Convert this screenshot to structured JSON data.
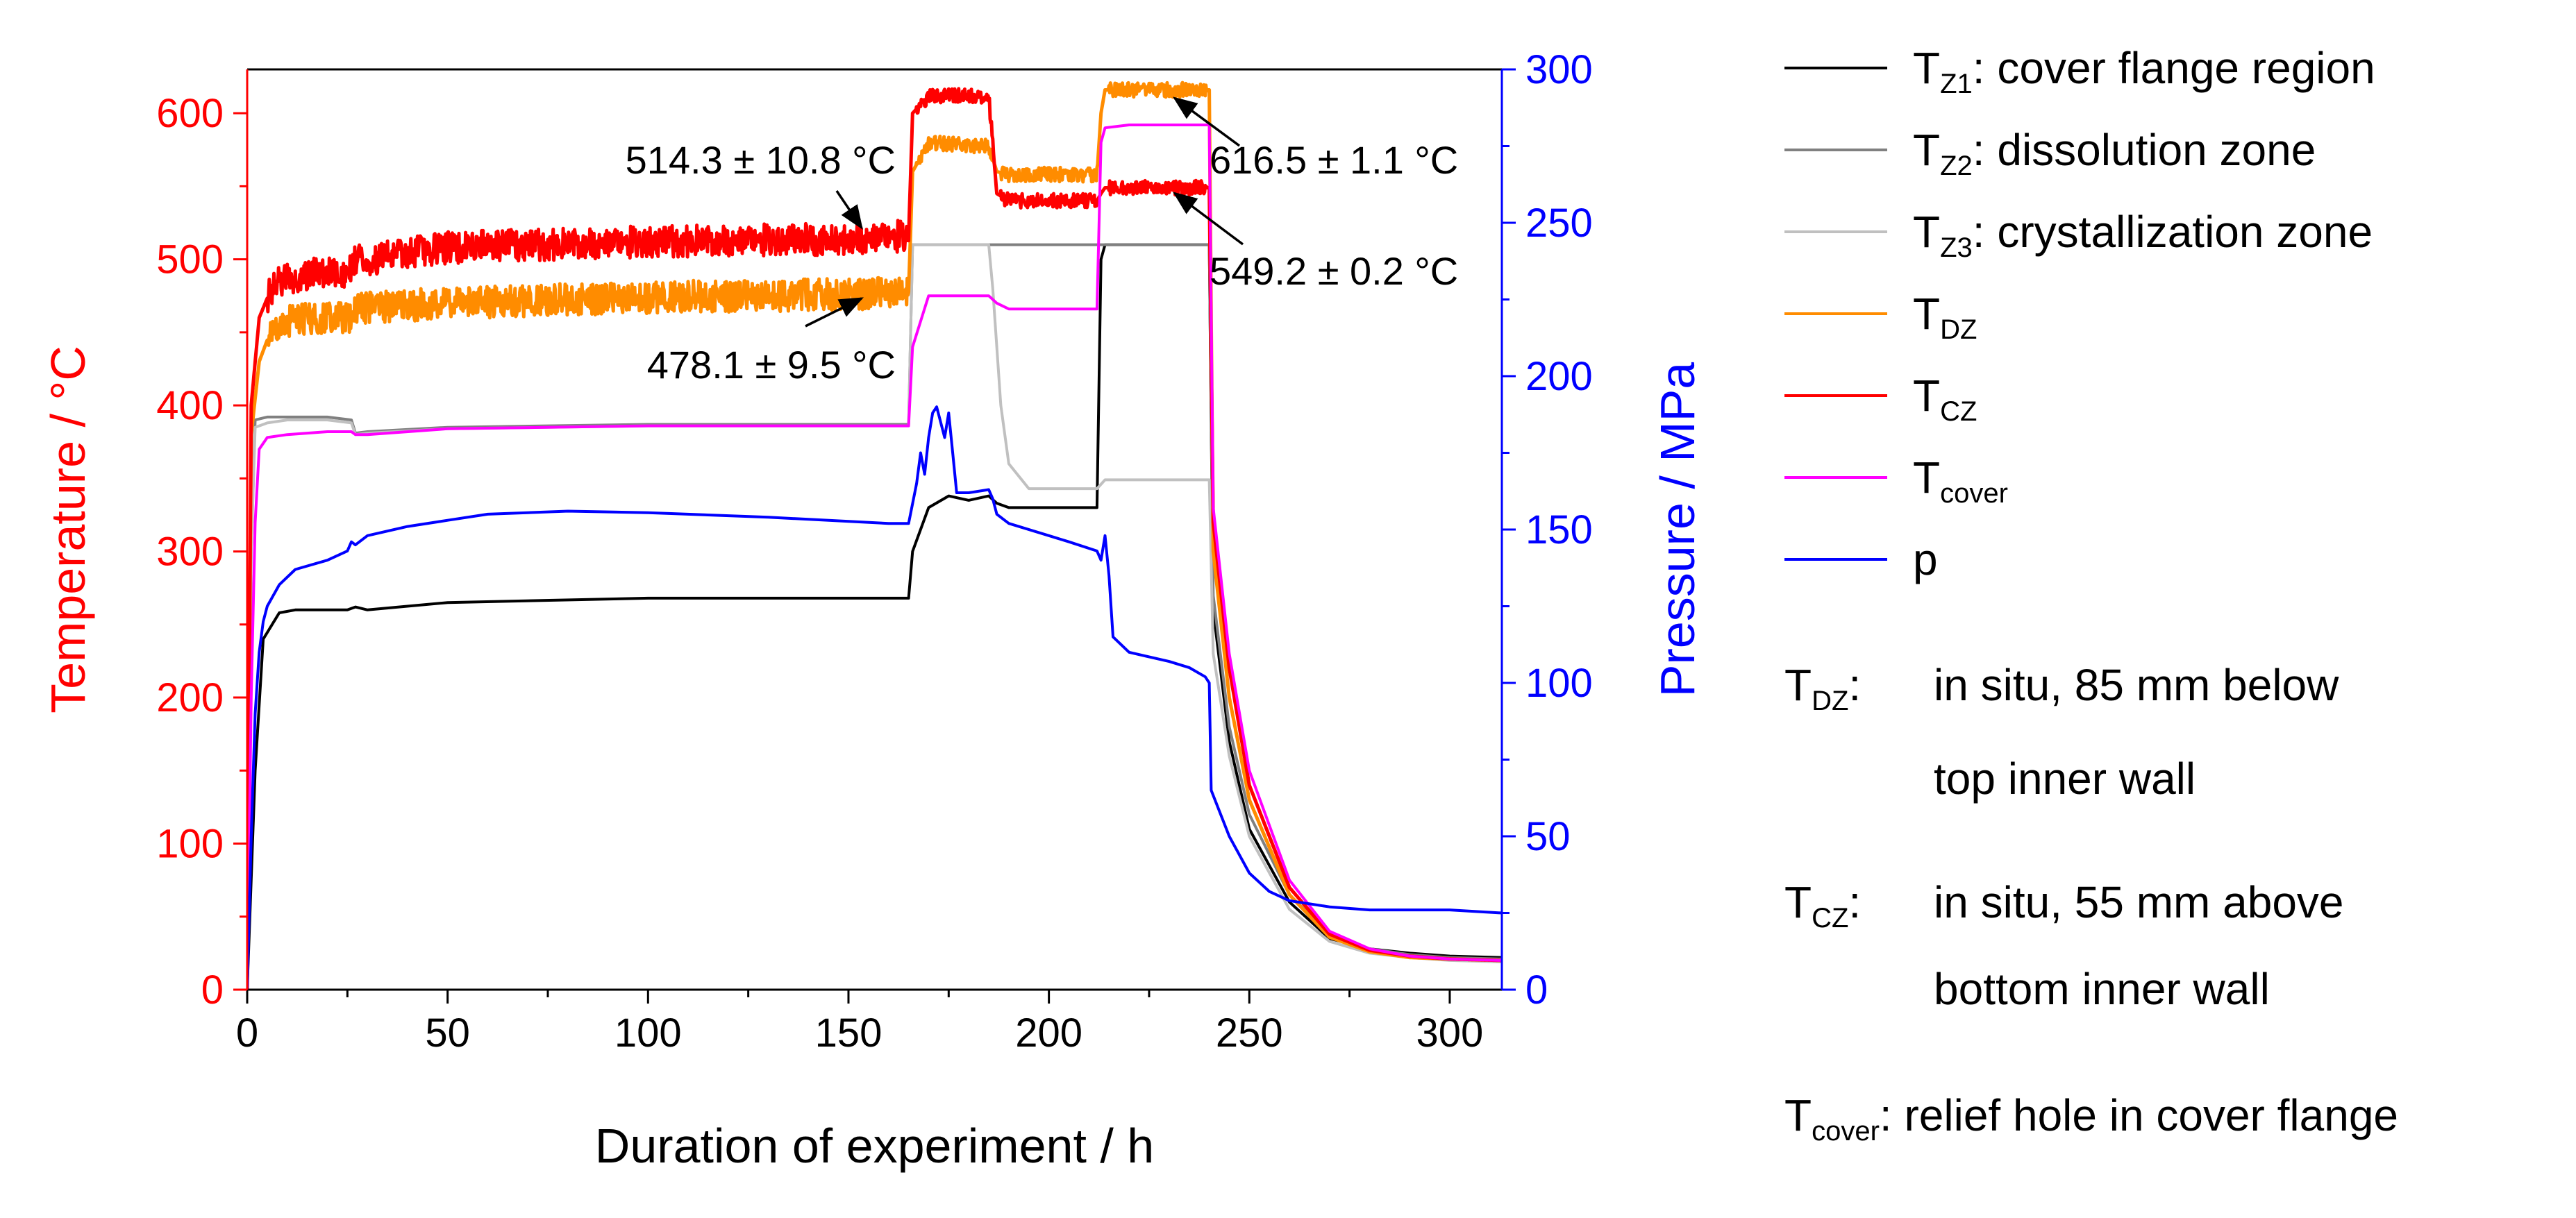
{
  "chart_data": {
    "type": "line",
    "xlabel": "Duration of experiment / h",
    "ylabel_left": "Temperature / °C",
    "ylabel_right": "Pressure / MPa",
    "xlim": [
      0,
      313
    ],
    "ylim_left": [
      0,
      630
    ],
    "ylim_right": [
      0,
      300
    ],
    "xticks": [
      0,
      50,
      100,
      150,
      200,
      250,
      300
    ],
    "yticks_left": [
      0,
      100,
      200,
      300,
      400,
      500,
      600
    ],
    "yticks_right": [
      0,
      50,
      100,
      150,
      200,
      250,
      300
    ],
    "colors": {
      "left_axis": "#ff0000",
      "right_axis": "#0000ff",
      "axes": "#000000"
    },
    "series": [
      {
        "name": "T_Z1",
        "label_main": "T",
        "label_sub": "Z1",
        "label_rest": ": cover flange region",
        "axis": "left",
        "color": "#000000",
        "x": [
          0,
          2,
          4,
          8,
          12,
          25,
          27,
          30,
          50,
          100,
          165,
          166,
          170,
          175,
          180,
          185,
          187,
          190,
          200,
          212,
          213,
          214,
          220,
          238,
          240,
          241,
          245,
          250,
          260,
          270,
          280,
          290,
          300,
          313
        ],
        "y": [
          0,
          150,
          240,
          258,
          260,
          260,
          262,
          260,
          265,
          268,
          268,
          300,
          330,
          338,
          335,
          338,
          333,
          330,
          330,
          330,
          500,
          510,
          510,
          510,
          510,
          260,
          170,
          110,
          60,
          35,
          28,
          25,
          23,
          22
        ]
      },
      {
        "name": "T_Z2",
        "label_main": "T",
        "label_sub": "Z2",
        "label_rest": ": dissolution zone",
        "axis": "left",
        "color": "#808080",
        "x": [
          0,
          1,
          2,
          5,
          10,
          20,
          26,
          27,
          30,
          50,
          100,
          165,
          166,
          170,
          185,
          187,
          200,
          220,
          240,
          241,
          245,
          250,
          260,
          270,
          280,
          290,
          300,
          313
        ],
        "y": [
          0,
          300,
          390,
          392,
          392,
          392,
          390,
          381,
          382,
          385,
          387,
          387,
          510,
          510,
          510,
          510,
          510,
          510,
          510,
          270,
          180,
          120,
          65,
          38,
          28,
          24,
          22,
          21
        ]
      },
      {
        "name": "T_Z3",
        "label_main": "T",
        "label_sub": "Z3",
        "label_rest": ": crystallization zone",
        "axis": "left",
        "color": "#c0c0c0",
        "x": [
          0,
          1,
          2,
          5,
          10,
          20,
          26,
          27,
          30,
          50,
          100,
          165,
          166,
          170,
          185,
          186,
          188,
          190,
          195,
          212,
          214,
          220,
          240,
          241,
          245,
          250,
          260,
          270,
          280,
          290,
          300,
          313
        ],
        "y": [
          0,
          300,
          385,
          388,
          390,
          390,
          388,
          380,
          381,
          384,
          386,
          386,
          510,
          510,
          510,
          480,
          400,
          360,
          343,
          343,
          349,
          349,
          349,
          230,
          160,
          105,
          55,
          33,
          25,
          22,
          20,
          19
        ]
      },
      {
        "name": "T_DZ",
        "label_main": "T",
        "label_sub": "DZ",
        "label_rest": "",
        "axis": "left",
        "color": "#ff8c00",
        "x": [
          0,
          1,
          3,
          6,
          10,
          15,
          25,
          26,
          27,
          30,
          50,
          100,
          150,
          165,
          166,
          170,
          180,
          185,
          187,
          190,
          200,
          212,
          213,
          214,
          220,
          240,
          241,
          245,
          250,
          260,
          270,
          280,
          290,
          300,
          313
        ],
        "y": [
          0,
          380,
          430,
          452,
          458,
          460,
          460,
          462,
          467,
          467,
          470,
          474,
          476,
          478,
          560,
          580,
          578,
          578,
          560,
          558,
          558,
          558,
          600,
          616,
          616,
          616,
          300,
          200,
          130,
          65,
          36,
          26,
          22,
          21,
          20
        ]
      },
      {
        "name": "T_CZ",
        "label_main": "T",
        "label_sub": "CZ",
        "label_rest": "",
        "axis": "left",
        "color": "#ff0000",
        "x": [
          0,
          1,
          3,
          6,
          10,
          15,
          25,
          26,
          27,
          30,
          50,
          100,
          150,
          165,
          166,
          170,
          180,
          185,
          187,
          190,
          200,
          212,
          213,
          214,
          220,
          240,
          241,
          245,
          250,
          260,
          270,
          280,
          290,
          300,
          313
        ],
        "y": [
          0,
          400,
          460,
          480,
          487,
          490,
          490,
          495,
          500,
          500,
          508,
          512,
          514,
          516,
          600,
          612,
          612,
          612,
          545,
          540,
          540,
          540,
          545,
          549,
          549,
          549,
          320,
          220,
          140,
          70,
          38,
          27,
          23,
          21,
          20
        ]
      },
      {
        "name": "T_cover",
        "label_main": "T",
        "label_sub": "cover",
        "label_rest": "",
        "axis": "left",
        "color": "#ff00ff",
        "x": [
          0,
          1,
          2,
          3,
          5,
          10,
          20,
          26,
          27,
          30,
          50,
          100,
          165,
          166,
          170,
          175,
          180,
          185,
          187,
          190,
          200,
          212,
          213,
          214,
          220,
          239,
          240,
          241,
          245,
          250,
          260,
          270,
          280,
          290,
          300,
          313
        ],
        "y": [
          0,
          200,
          320,
          370,
          378,
          380,
          382,
          382,
          380,
          380,
          384,
          386,
          386,
          440,
          475,
          475,
          475,
          475,
          470,
          466,
          466,
          466,
          580,
          590,
          592,
          592,
          592,
          330,
          230,
          150,
          75,
          40,
          28,
          23,
          21,
          20
        ]
      },
      {
        "name": "p",
        "label_main": "p",
        "label_sub": "",
        "label_rest": "",
        "axis": "right",
        "color": "#0000ff",
        "x": [
          0,
          1,
          2,
          3,
          4,
          5,
          8,
          12,
          20,
          25,
          26,
          27,
          30,
          40,
          50,
          60,
          80,
          100,
          130,
          160,
          165,
          167,
          168,
          169,
          170,
          171,
          172,
          174,
          175,
          176,
          177,
          180,
          185,
          186,
          187,
          190,
          200,
          205,
          212,
          213,
          214,
          215,
          216,
          220,
          230,
          235,
          239,
          240,
          240.5,
          245,
          250,
          255,
          260,
          270,
          280,
          290,
          300,
          313
        ],
        "y": [
          0,
          50,
          90,
          110,
          120,
          125,
          132,
          137,
          140,
          143,
          146,
          145,
          148,
          151,
          153,
          155,
          156,
          155.5,
          154,
          152,
          152,
          165,
          175,
          168,
          180,
          188,
          190,
          180,
          188,
          175,
          162,
          162,
          163,
          160,
          155,
          152,
          148,
          146,
          143,
          140,
          148,
          135,
          115,
          110,
          107,
          105,
          102,
          100,
          65,
          50,
          38,
          32,
          29,
          27,
          26,
          26,
          26,
          25
        ]
      }
    ],
    "annotations": [
      {
        "text": "514.3 ± 10.8 °C",
        "arrow_to": [
          155,
          515
        ]
      },
      {
        "text": "478.1 ± 9.5 °C",
        "arrow_to": [
          155,
          478
        ]
      },
      {
        "text": "616.5 ± 1.1 °C",
        "arrow_to": [
          230,
          616
        ]
      },
      {
        "text": "549.2 ± 0.2 °C",
        "arrow_to": [
          230,
          549
        ]
      }
    ]
  },
  "notes": [
    {
      "main": "T",
      "sub": "DZ",
      "colon": ":",
      "lines": [
        "in situ, 85 mm below",
        "top inner wall"
      ]
    },
    {
      "main": "T",
      "sub": "CZ",
      "colon": ":",
      "lines": [
        "in situ, 55 mm above",
        "bottom inner wall"
      ]
    },
    {
      "main": "T",
      "sub": "cover",
      "colon": ":",
      "text": " relief hole in cover flange"
    }
  ]
}
